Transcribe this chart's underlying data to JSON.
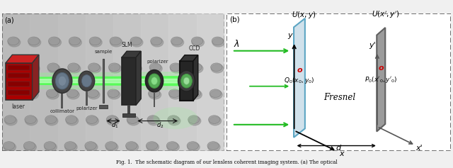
{
  "fig_width": 6.4,
  "fig_height": 2.37,
  "dpi": 100,
  "panel_a_label": "(a)",
  "panel_b_label": "(b)",
  "panel_a_bg": "#b0b0b0",
  "plane1_color": "#c8dce8",
  "plane1_edge": "#4499bb",
  "plane2_color": "#909090",
  "plane2_edge": "#555555",
  "arrow_color": "#22bb22",
  "red_color": "#cc0000",
  "caption": "Fig. 1.  The schematic diagram of our lensless coherent imaging system. (a) The optical"
}
